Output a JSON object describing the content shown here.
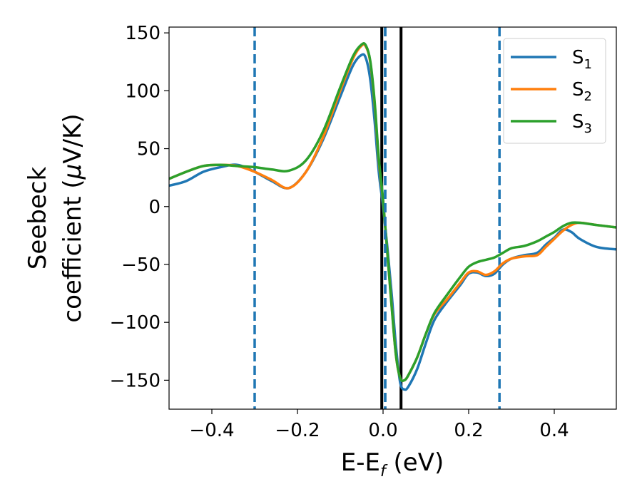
{
  "chart_data": {
    "type": "line",
    "title": "",
    "xlabel": {
      "main": "E-E",
      "sub": "f",
      "unit": " (eV)"
    },
    "ylabel": {
      "line1": "Seebeck",
      "line2_pre": "coefficient  (",
      "mu": "μ",
      "line2_post": "V/K)"
    },
    "xlim": [
      -0.5,
      0.545
    ],
    "ylim": [
      -175,
      155
    ],
    "xticks": [
      -0.4,
      -0.2,
      0.0,
      0.2,
      0.4
    ],
    "xtick_labels": [
      "−0.4",
      "−0.2",
      "0.0",
      "0.2",
      "0.4"
    ],
    "yticks": [
      -150,
      -100,
      -50,
      0,
      50,
      100,
      150
    ],
    "ytick_labels": [
      "−150",
      "−100",
      "−50",
      "0",
      "50",
      "100",
      "150"
    ],
    "grid": false,
    "legend_position": "top-right",
    "series": [
      {
        "name": "S",
        "sub": "1",
        "color": "#1f77b4",
        "x": [
          -0.5,
          -0.46,
          -0.42,
          -0.38,
          -0.34,
          -0.3,
          -0.26,
          -0.22,
          -0.18,
          -0.14,
          -0.1,
          -0.07,
          -0.05,
          -0.04,
          -0.03,
          -0.02,
          -0.01,
          0.0,
          0.01,
          0.02,
          0.03,
          0.04,
          0.05,
          0.06,
          0.08,
          0.1,
          0.12,
          0.15,
          0.18,
          0.2,
          0.22,
          0.24,
          0.26,
          0.28,
          0.3,
          0.33,
          0.36,
          0.38,
          0.4,
          0.42,
          0.44,
          0.46,
          0.5,
          0.545
        ],
        "y": [
          18,
          22,
          30,
          34,
          36,
          30,
          22,
          16,
          30,
          58,
          95,
          122,
          131,
          128,
          110,
          75,
          30,
          0,
          -35,
          -75,
          -120,
          -152,
          -158,
          -155,
          -140,
          -118,
          -98,
          -82,
          -68,
          -58,
          -57,
          -60,
          -58,
          -50,
          -45,
          -42,
          -40,
          -33,
          -27,
          -20,
          -22,
          -28,
          -35,
          -37
        ]
      },
      {
        "name": "S",
        "sub": "2",
        "color": "#ff7f0e",
        "x": [
          -0.5,
          -0.46,
          -0.42,
          -0.38,
          -0.34,
          -0.3,
          -0.26,
          -0.22,
          -0.18,
          -0.14,
          -0.1,
          -0.07,
          -0.05,
          -0.04,
          -0.03,
          -0.02,
          -0.01,
          0.0,
          0.01,
          0.02,
          0.03,
          0.04,
          0.05,
          0.06,
          0.08,
          0.1,
          0.12,
          0.15,
          0.18,
          0.2,
          0.22,
          0.24,
          0.26,
          0.28,
          0.3,
          0.33,
          0.36,
          0.38,
          0.4,
          0.42,
          0.44,
          0.46,
          0.5,
          0.545
        ],
        "y": [
          24,
          30,
          35,
          36,
          35,
          30,
          23,
          16,
          30,
          60,
          100,
          128,
          139,
          138,
          125,
          90,
          40,
          5,
          -40,
          -85,
          -128,
          -148,
          -150,
          -145,
          -130,
          -110,
          -93,
          -80,
          -66,
          -57,
          -56,
          -59,
          -56,
          -49,
          -45,
          -43,
          -42,
          -35,
          -28,
          -21,
          -16,
          -14,
          -16,
          -18
        ]
      },
      {
        "name": "S",
        "sub": "3",
        "color": "#2ca02c",
        "x": [
          -0.5,
          -0.46,
          -0.42,
          -0.38,
          -0.34,
          -0.3,
          -0.26,
          -0.22,
          -0.18,
          -0.14,
          -0.1,
          -0.07,
          -0.05,
          -0.04,
          -0.03,
          -0.02,
          -0.01,
          0.0,
          0.01,
          0.02,
          0.03,
          0.04,
          0.05,
          0.06,
          0.08,
          0.1,
          0.12,
          0.15,
          0.18,
          0.2,
          0.22,
          0.24,
          0.26,
          0.28,
          0.3,
          0.33,
          0.36,
          0.38,
          0.4,
          0.42,
          0.44,
          0.46,
          0.5,
          0.545
        ],
        "y": [
          24,
          30,
          35,
          36,
          35,
          34,
          32,
          31,
          40,
          65,
          103,
          130,
          140,
          139,
          126,
          92,
          42,
          6,
          -40,
          -86,
          -128,
          -148,
          -150,
          -145,
          -130,
          -110,
          -92,
          -76,
          -61,
          -52,
          -48,
          -46,
          -44,
          -40,
          -36,
          -34,
          -30,
          -26,
          -22,
          -17,
          -14,
          -14,
          -16,
          -18
        ]
      }
    ],
    "vlines": [
      {
        "x": -0.3,
        "style": "dashed",
        "color": "#1f77b4"
      },
      {
        "x": 0.005,
        "style": "dashed",
        "color": "#1f77b4"
      },
      {
        "x": 0.272,
        "style": "dashed",
        "color": "#1f77b4"
      },
      {
        "x": -0.003,
        "style": "solid",
        "color": "#000000"
      },
      {
        "x": 0.042,
        "style": "solid",
        "color": "#000000"
      }
    ]
  }
}
